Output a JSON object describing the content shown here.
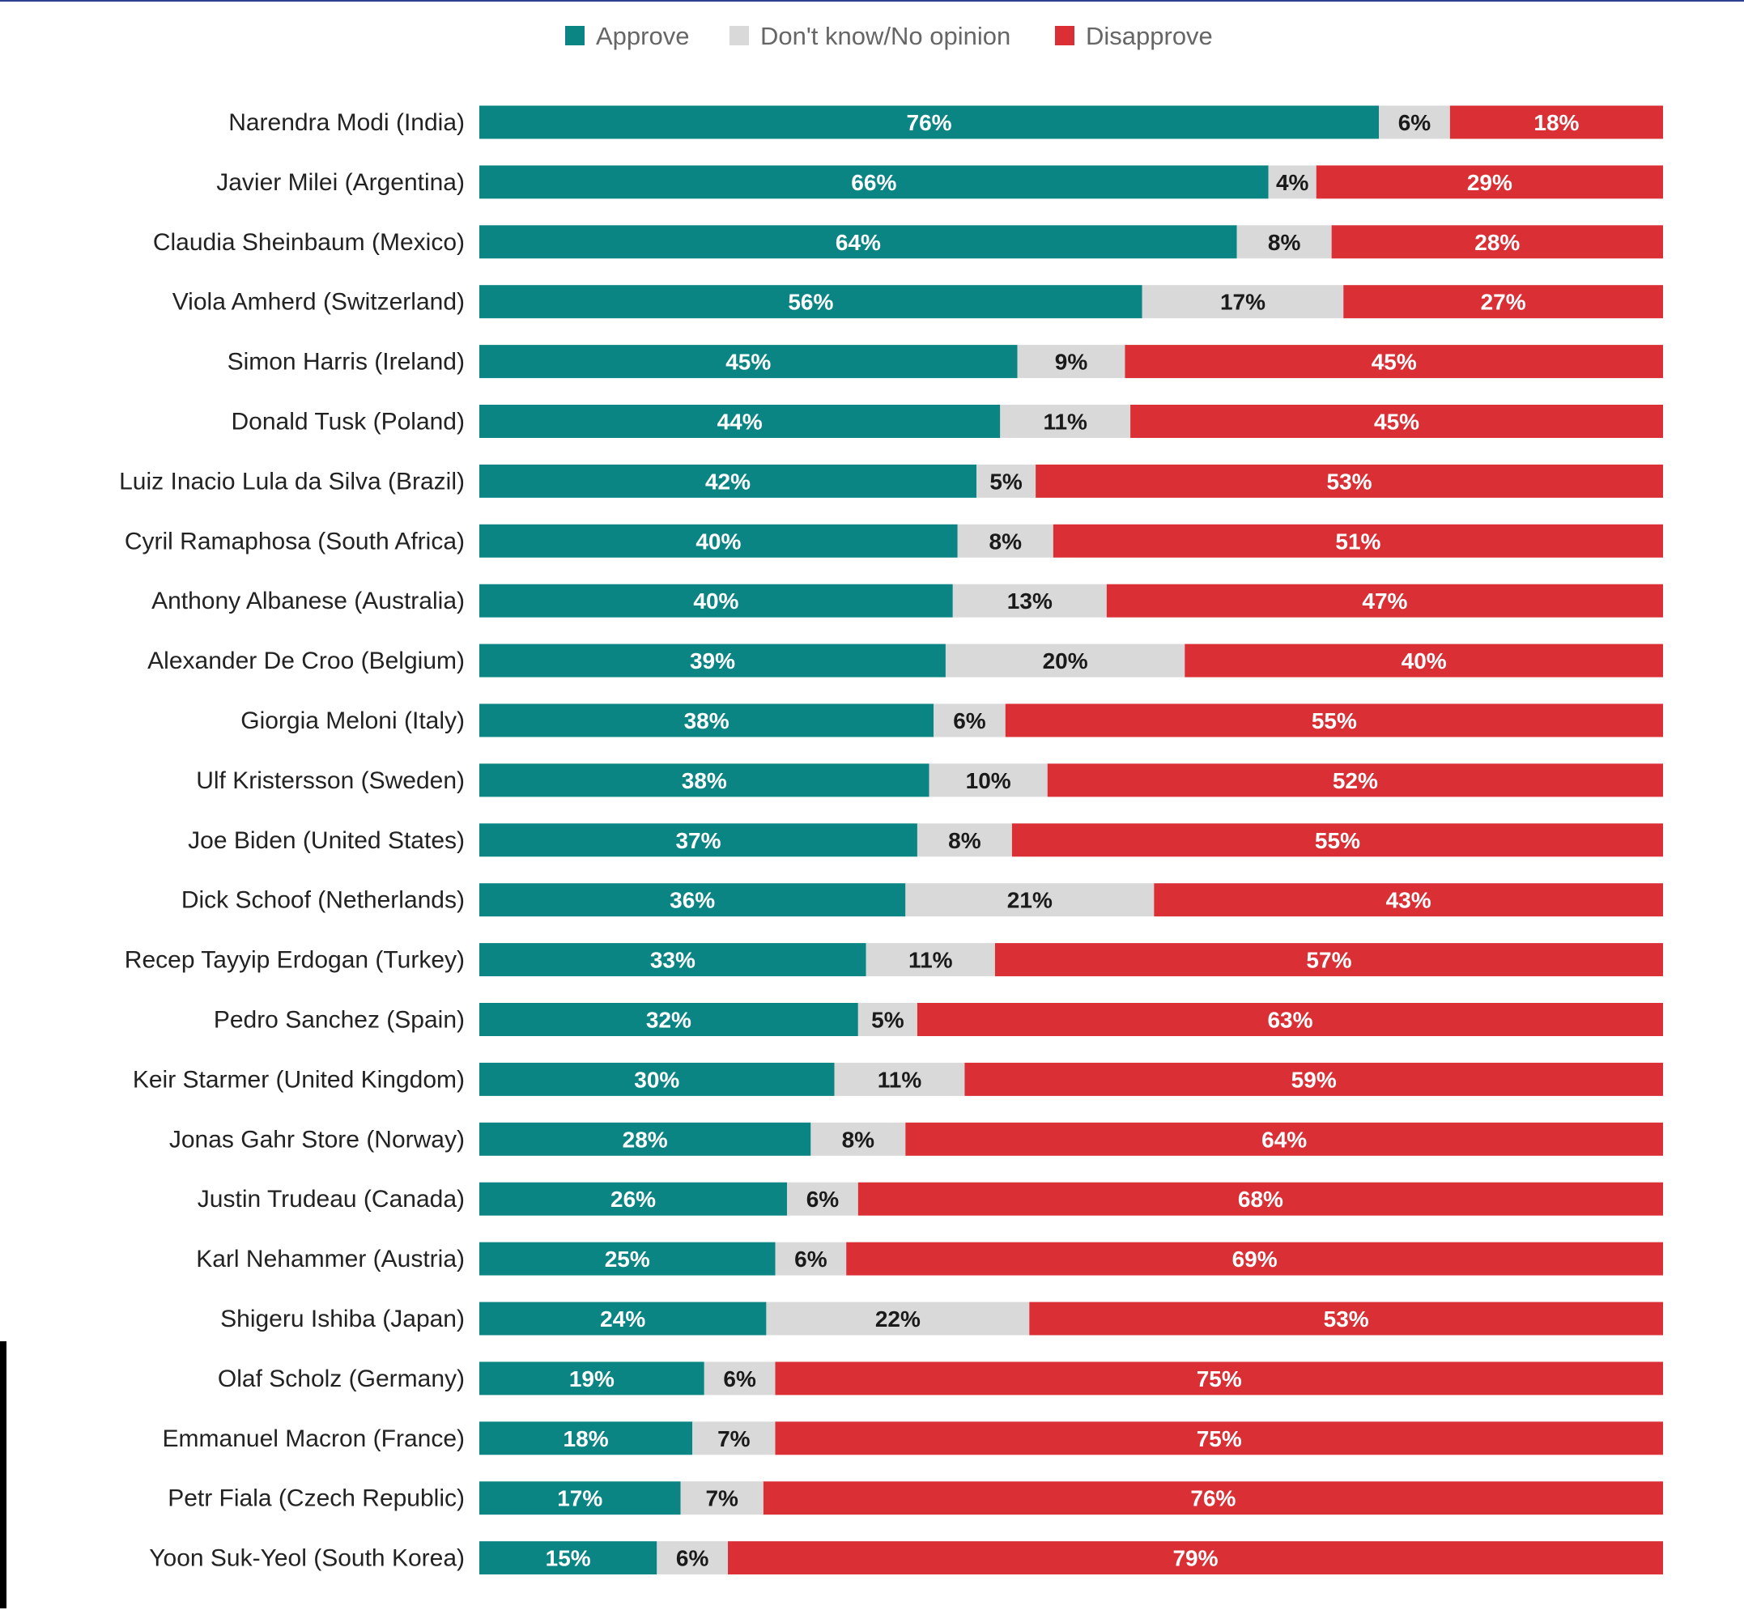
{
  "chart_data": {
    "type": "bar",
    "orientation": "horizontal",
    "stacked": true,
    "legend_position": "top-center",
    "grid": false,
    "xlim": [
      0,
      100
    ],
    "unit": "%",
    "colors": {
      "approve": "#0b8583",
      "no_opinion": "#d9d9d9",
      "disapprove": "#d92f35"
    },
    "categories": [
      "Narendra Modi (India)",
      "Javier Milei (Argentina)",
      "Claudia Sheinbaum (Mexico)",
      "Viola Amherd (Switzerland)",
      "Simon Harris (Ireland)",
      "Donald Tusk (Poland)",
      "Luiz Inacio Lula da Silva (Brazil)",
      "Cyril Ramaphosa (South Africa)",
      "Anthony Albanese (Australia)",
      "Alexander De Croo (Belgium)",
      "Giorgia Meloni (Italy)",
      "Ulf Kristersson (Sweden)",
      "Joe Biden (United States)",
      "Dick Schoof (Netherlands)",
      "Recep Tayyip Erdogan (Turkey)",
      "Pedro Sanchez (Spain)",
      "Keir Starmer (United Kingdom)",
      "Jonas Gahr Store (Norway)",
      "Justin Trudeau (Canada)",
      "Karl Nehammer (Austria)",
      "Shigeru Ishiba (Japan)",
      "Olaf Scholz (Germany)",
      "Emmanuel Macron (France)",
      "Petr Fiala (Czech Republic)",
      "Yoon Suk-Yeol (South Korea)"
    ],
    "series": [
      {
        "name": "Approve",
        "key": "approve",
        "values": [
          76,
          66,
          64,
          56,
          45,
          44,
          42,
          40,
          40,
          39,
          38,
          38,
          37,
          36,
          33,
          32,
          30,
          28,
          26,
          25,
          24,
          19,
          18,
          17,
          15
        ]
      },
      {
        "name": "Don't know/No opinion",
        "key": "no_opinion",
        "values": [
          6,
          4,
          8,
          17,
          9,
          11,
          5,
          8,
          13,
          20,
          6,
          10,
          8,
          21,
          11,
          5,
          11,
          8,
          6,
          6,
          22,
          6,
          7,
          7,
          6
        ]
      },
      {
        "name": "Disapprove",
        "key": "disapprove",
        "values": [
          18,
          29,
          28,
          27,
          45,
          45,
          53,
          51,
          47,
          40,
          55,
          52,
          55,
          43,
          57,
          63,
          59,
          64,
          68,
          69,
          53,
          75,
          75,
          76,
          79
        ]
      }
    ]
  }
}
